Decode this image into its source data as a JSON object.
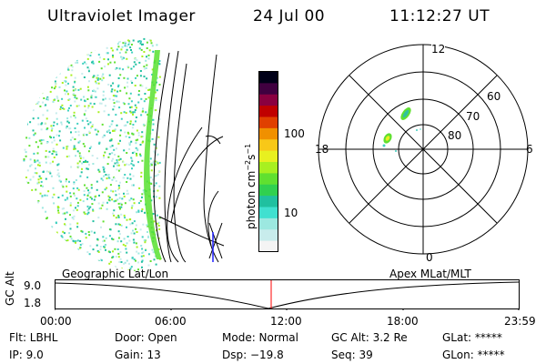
{
  "header": {
    "instrument": "Ultraviolet Imager",
    "date": "24 Jul 00",
    "time": "11:12:27 UT"
  },
  "colorbar": {
    "label_main": "photon cm",
    "label_sup1": "−2",
    "label_mid": "s",
    "label_sup2": "−1",
    "ticks": [
      "100",
      "10"
    ],
    "colors": [
      "#f4f4f4",
      "#c8ecec",
      "#9ce8e0",
      "#40e0d0",
      "#20c0a0",
      "#30d050",
      "#60e030",
      "#a8f020",
      "#e8f020",
      "#f8c818",
      "#f09000",
      "#e04000",
      "#c00000",
      "#8a0040",
      "#400040",
      "#000018"
    ]
  },
  "polar_plot": {
    "mlt_labels": [
      "12",
      "18",
      "6",
      "0"
    ],
    "lat_labels": [
      "60",
      "70",
      "80"
    ]
  },
  "timeline": {
    "left_title": "Geographic Lat/Lon",
    "right_title": "Apex MLat/MLT",
    "yaxis_label": "GC Alt",
    "ytick_top": "9.0",
    "ytick_bottom": "1.8",
    "xticks": [
      "00:00",
      "06:00",
      "12:00",
      "18:00",
      "23:59"
    ],
    "marker_color": "#ff0000"
  },
  "info": {
    "flt": "Flt: LBHL",
    "ip": "IP:  9.0",
    "door": "Door: Open",
    "gain": "Gain: 13",
    "mode": "Mode: Normal",
    "dsp": "Dsp:  −19.8",
    "gcalt": "GC Alt: 3.2 Re",
    "seq": "Seq: 39",
    "glat": "GLat: *****",
    "glon": "GLon: *****"
  }
}
